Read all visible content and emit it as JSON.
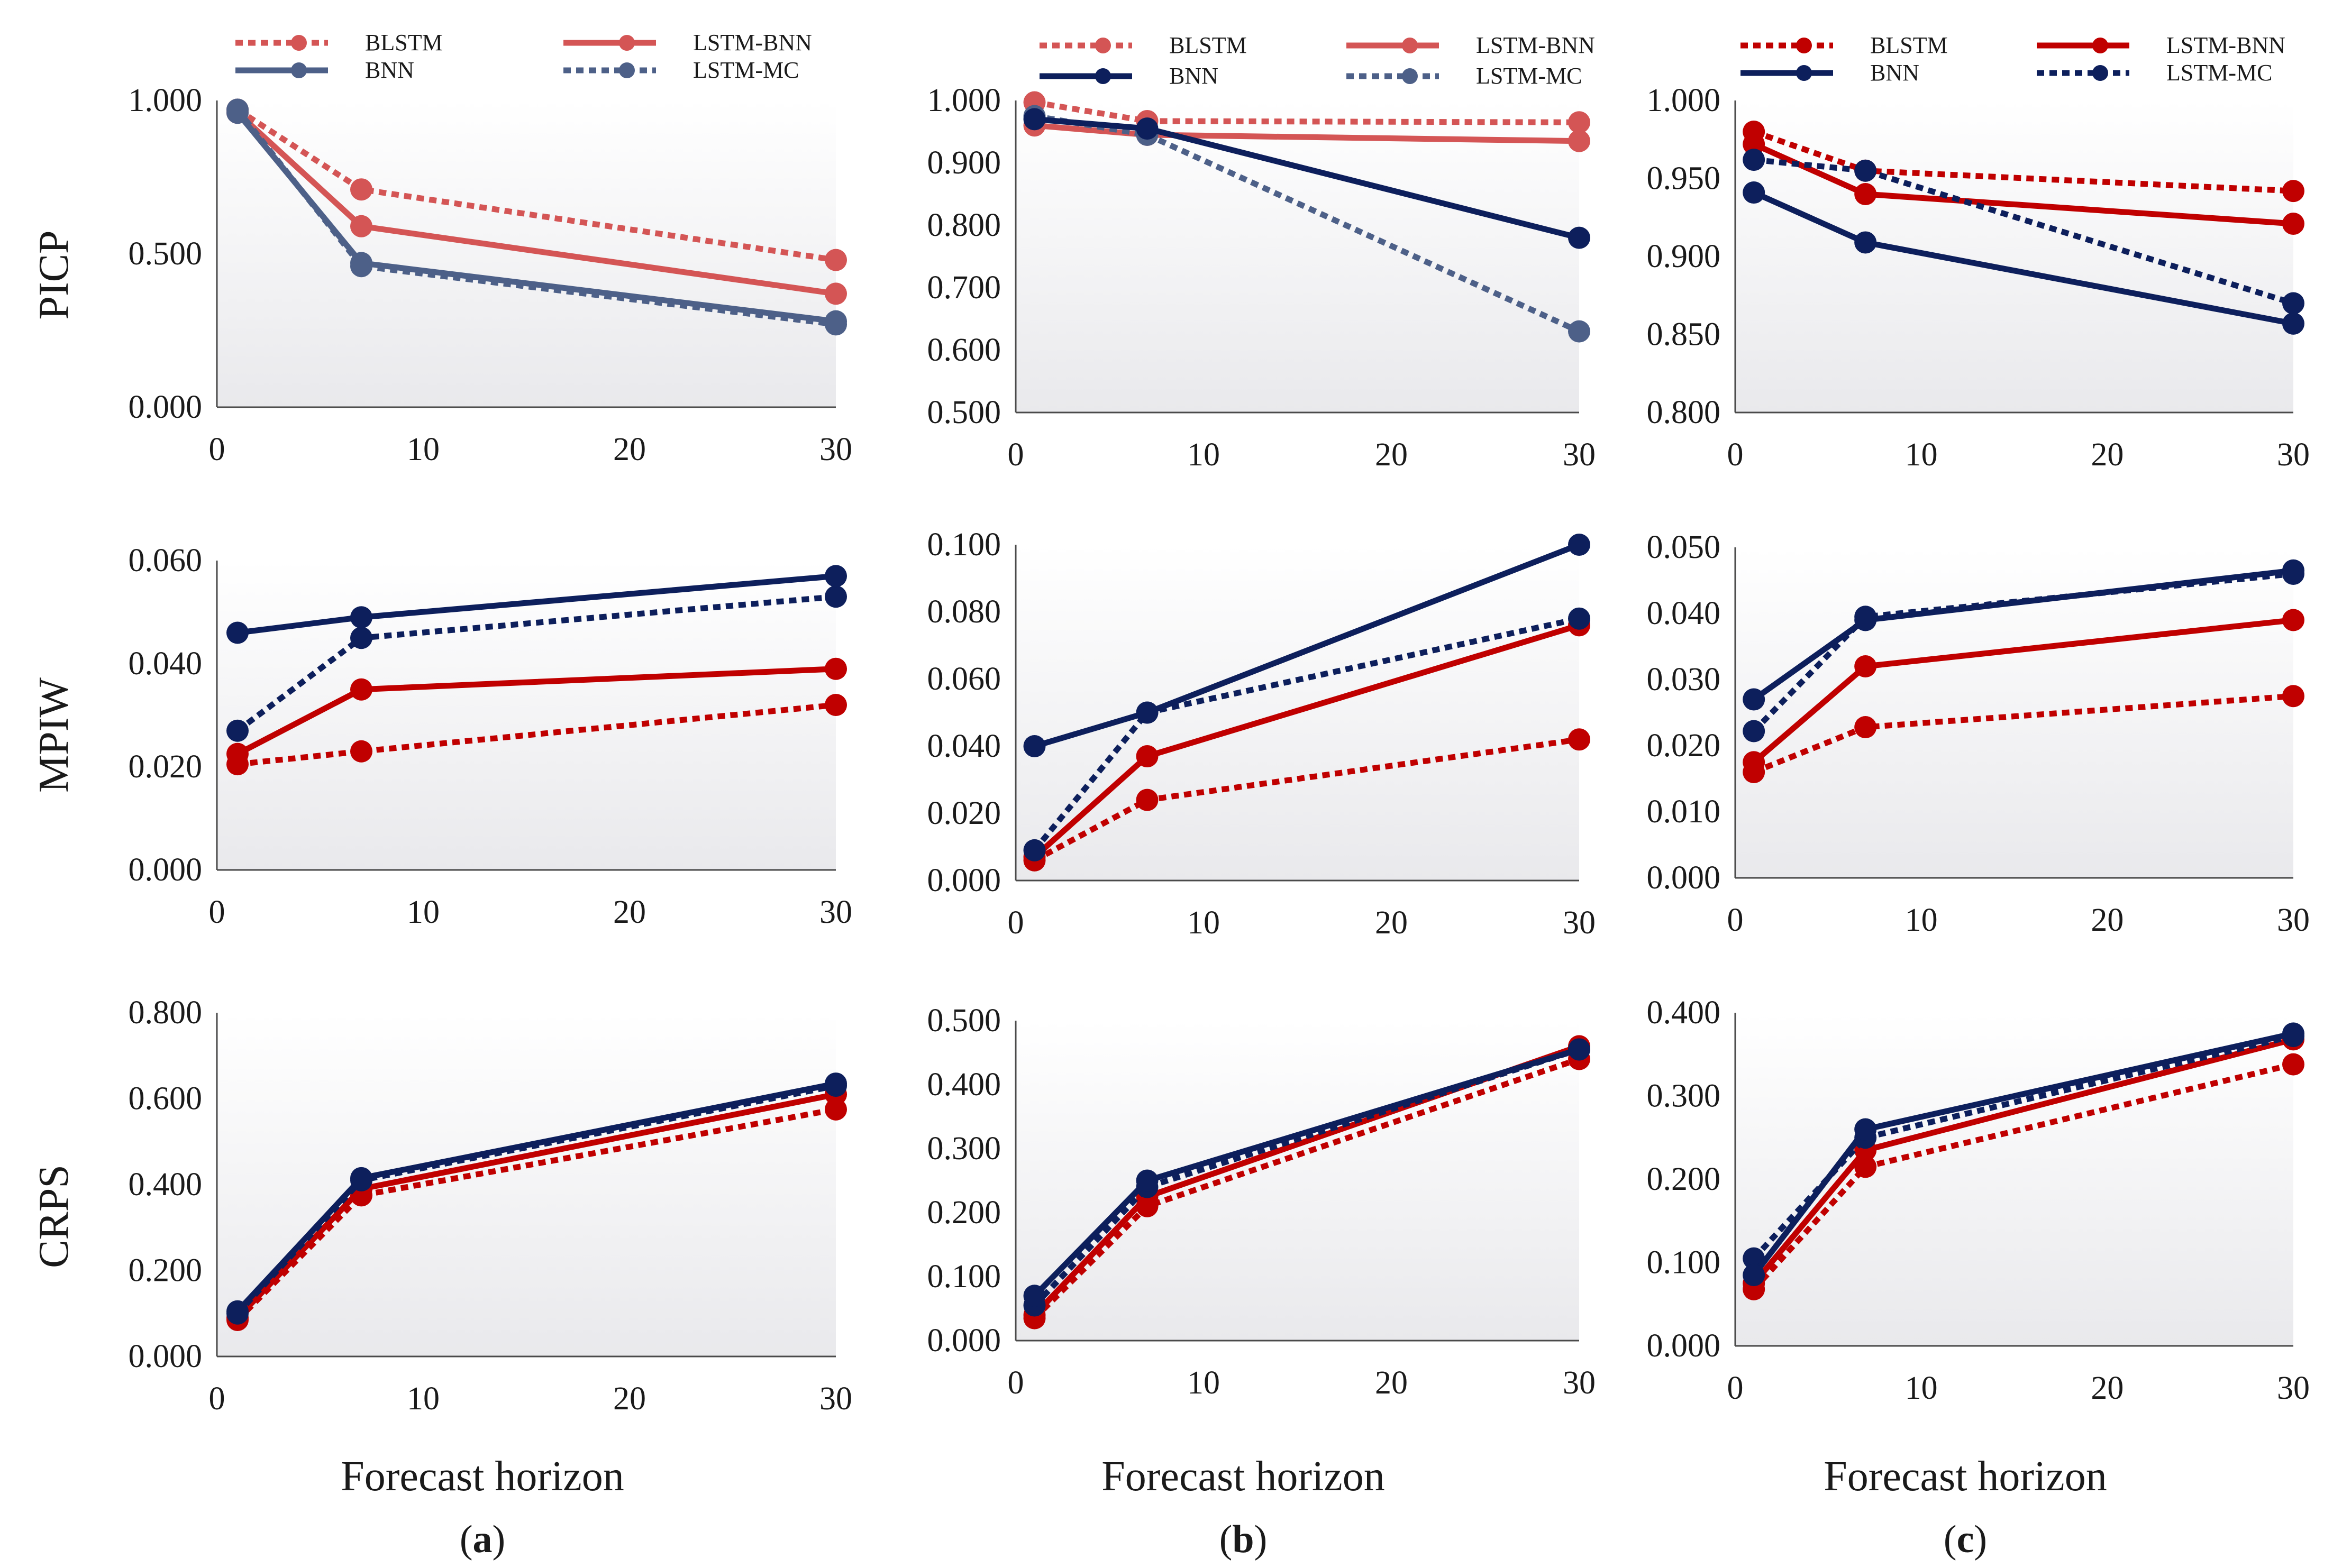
{
  "figure": {
    "xlabel": "Forecast horizon",
    "panel_labels": [
      {
        "open": "(",
        "letter": "a",
        "close": ")"
      },
      {
        "open": "(",
        "letter": "b",
        "close": ")"
      },
      {
        "open": "(",
        "letter": "c",
        "close": ")"
      }
    ],
    "row_labels": [
      "PICP",
      "MPIW",
      "CRPS"
    ],
    "colors": {
      "red": "#c00000",
      "blue": "#0d1f5c",
      "red_faded": "#d45555",
      "blue_faded": "#4d6088"
    }
  },
  "chart_data": [
    {
      "id": "a-picp",
      "type": "line",
      "ylabel": "PICP",
      "ylim": [
        0,
        1
      ],
      "yticks": [
        "0.000",
        "0.500",
        "1.000"
      ],
      "yticks_values": [
        0,
        0.5,
        1
      ],
      "xlim": [
        0,
        30
      ],
      "xticks": [
        0,
        10,
        20,
        30
      ],
      "x": [
        1,
        7,
        30
      ],
      "faded": true,
      "legend": [
        "BLSTM",
        "LSTM-BNN",
        "BNN",
        "LSTM-MC"
      ],
      "series": [
        {
          "name": "BLSTM",
          "values": [
            0.97,
            0.71,
            0.48
          ]
        },
        {
          "name": "LSTM-BNN",
          "values": [
            0.96,
            0.59,
            0.37
          ]
        },
        {
          "name": "BNN",
          "values": [
            0.96,
            0.47,
            0.28
          ]
        },
        {
          "name": "LSTM-MC",
          "values": [
            0.97,
            0.46,
            0.27
          ]
        }
      ]
    },
    {
      "id": "b-picp",
      "type": "line",
      "ylabel": "",
      "ylim": [
        0.5,
        1
      ],
      "yticks": [
        "0.500",
        "0.600",
        "0.700",
        "0.800",
        "0.900",
        "1.000"
      ],
      "yticks_values": [
        0.5,
        0.6,
        0.7,
        0.8,
        0.9,
        1.0
      ],
      "xlim": [
        0,
        30
      ],
      "xticks": [
        0,
        10,
        20,
        30
      ],
      "x": [
        1,
        7,
        30
      ],
      "faded": "mixed",
      "legend": [
        "BLSTM",
        "LSTM-BNN",
        "BNN",
        "LSTM-MC"
      ],
      "series": [
        {
          "name": "BLSTM",
          "values": [
            0.997,
            0.967,
            0.965
          ]
        },
        {
          "name": "LSTM-BNN",
          "values": [
            0.96,
            0.945,
            0.935
          ]
        },
        {
          "name": "BNN",
          "values": [
            0.97,
            0.955,
            0.78
          ]
        },
        {
          "name": "LSTM-MC",
          "values": [
            0.975,
            0.945,
            0.63
          ]
        }
      ]
    },
    {
      "id": "c-picp",
      "type": "line",
      "ylabel": "",
      "ylim": [
        0.8,
        1
      ],
      "yticks": [
        "0.800",
        "0.850",
        "0.900",
        "0.950",
        "1.000"
      ],
      "yticks_values": [
        0.8,
        0.85,
        0.9,
        0.95,
        1.0
      ],
      "xlim": [
        0,
        30
      ],
      "xticks": [
        0,
        10,
        20,
        30
      ],
      "x": [
        1,
        7,
        30
      ],
      "faded": false,
      "legend": [
        "BLSTM",
        "LSTM-BNN",
        "BNN",
        "LSTM-MC"
      ],
      "series": [
        {
          "name": "BLSTM",
          "values": [
            0.98,
            0.955,
            0.942
          ]
        },
        {
          "name": "LSTM-BNN",
          "values": [
            0.972,
            0.94,
            0.921
          ]
        },
        {
          "name": "BNN",
          "values": [
            0.941,
            0.909,
            0.857
          ]
        },
        {
          "name": "LSTM-MC",
          "values": [
            0.962,
            0.955,
            0.87
          ]
        }
      ]
    },
    {
      "id": "a-mpiw",
      "type": "line",
      "ylabel": "MPIW",
      "ylim": [
        0,
        0.06
      ],
      "yticks": [
        "0.000",
        "0.020",
        "0.040",
        "0.060"
      ],
      "yticks_values": [
        0,
        0.02,
        0.04,
        0.06
      ],
      "xlim": [
        0,
        30
      ],
      "xticks": [
        0,
        10,
        20,
        30
      ],
      "x": [
        1,
        7,
        30
      ],
      "faded": false,
      "series": [
        {
          "name": "BLSTM",
          "values": [
            0.0205,
            0.023,
            0.032
          ]
        },
        {
          "name": "LSTM-BNN",
          "values": [
            0.0225,
            0.035,
            0.039
          ]
        },
        {
          "name": "BNN",
          "values": [
            0.046,
            0.049,
            0.057
          ]
        },
        {
          "name": "LSTM-MC",
          "values": [
            0.027,
            0.045,
            0.053
          ]
        }
      ]
    },
    {
      "id": "b-mpiw",
      "type": "line",
      "ylabel": "",
      "ylim": [
        0,
        0.1
      ],
      "yticks": [
        "0.000",
        "0.020",
        "0.040",
        "0.060",
        "0.080",
        "0.100"
      ],
      "yticks_values": [
        0,
        0.02,
        0.04,
        0.06,
        0.08,
        0.1
      ],
      "xlim": [
        0,
        30
      ],
      "xticks": [
        0,
        10,
        20,
        30
      ],
      "x": [
        1,
        7,
        30
      ],
      "faded": false,
      "series": [
        {
          "name": "BLSTM",
          "values": [
            0.006,
            0.024,
            0.042
          ]
        },
        {
          "name": "LSTM-BNN",
          "values": [
            0.007,
            0.037,
            0.076
          ]
        },
        {
          "name": "BNN",
          "values": [
            0.04,
            0.05,
            0.1
          ]
        },
        {
          "name": "LSTM-MC",
          "values": [
            0.009,
            0.05,
            0.078
          ]
        }
      ]
    },
    {
      "id": "c-mpiw",
      "type": "line",
      "ylabel": "",
      "ylim": [
        0,
        0.05
      ],
      "yticks": [
        "0.000",
        "0.010",
        "0.020",
        "0.030",
        "0.040",
        "0.050"
      ],
      "yticks_values": [
        0,
        0.01,
        0.02,
        0.03,
        0.04,
        0.05
      ],
      "xlim": [
        0,
        30
      ],
      "xticks": [
        0,
        10,
        20,
        30
      ],
      "x": [
        1,
        7,
        30
      ],
      "faded": false,
      "series": [
        {
          "name": "BLSTM",
          "values": [
            0.016,
            0.0228,
            0.0275
          ]
        },
        {
          "name": "LSTM-BNN",
          "values": [
            0.0175,
            0.032,
            0.039
          ]
        },
        {
          "name": "BNN",
          "values": [
            0.027,
            0.039,
            0.0465
          ]
        },
        {
          "name": "LSTM-MC",
          "values": [
            0.0222,
            0.0395,
            0.046
          ]
        }
      ]
    },
    {
      "id": "a-crps",
      "type": "line",
      "ylabel": "CRPS",
      "ylim": [
        0,
        0.8
      ],
      "yticks": [
        "0.000",
        "0.200",
        "0.400",
        "0.600",
        "0.800"
      ],
      "yticks_values": [
        0,
        0.2,
        0.4,
        0.6,
        0.8
      ],
      "xlim": [
        0,
        30
      ],
      "xticks": [
        0,
        10,
        20,
        30
      ],
      "x": [
        1,
        7,
        30
      ],
      "faded": false,
      "series": [
        {
          "name": "BLSTM",
          "values": [
            0.085,
            0.375,
            0.575
          ]
        },
        {
          "name": "LSTM-BNN",
          "values": [
            0.09,
            0.39,
            0.61
          ]
        },
        {
          "name": "BNN",
          "values": [
            0.105,
            0.415,
            0.635
          ]
        },
        {
          "name": "LSTM-MC",
          "values": [
            0.1,
            0.41,
            0.63
          ]
        }
      ]
    },
    {
      "id": "b-crps",
      "type": "line",
      "ylabel": "",
      "ylim": [
        0,
        0.5
      ],
      "yticks": [
        "0.000",
        "0.100",
        "0.200",
        "0.300",
        "0.400",
        "0.500"
      ],
      "yticks_values": [
        0,
        0.1,
        0.2,
        0.3,
        0.4,
        0.5
      ],
      "xlim": [
        0,
        30
      ],
      "xticks": [
        0,
        10,
        20,
        30
      ],
      "x": [
        1,
        7,
        30
      ],
      "faded": false,
      "series": [
        {
          "name": "BLSTM",
          "values": [
            0.035,
            0.21,
            0.44
          ]
        },
        {
          "name": "LSTM-BNN",
          "values": [
            0.04,
            0.225,
            0.46
          ]
        },
        {
          "name": "BNN",
          "values": [
            0.07,
            0.25,
            0.455
          ]
        },
        {
          "name": "LSTM-MC",
          "values": [
            0.055,
            0.24,
            0.455
          ]
        }
      ]
    },
    {
      "id": "c-crps",
      "type": "line",
      "ylabel": "",
      "ylim": [
        0,
        0.4
      ],
      "yticks": [
        "0.000",
        "0.100",
        "0.200",
        "0.300",
        "0.400"
      ],
      "yticks_values": [
        0,
        0.1,
        0.2,
        0.3,
        0.4
      ],
      "xlim": [
        0,
        30
      ],
      "xticks": [
        0,
        10,
        20,
        30
      ],
      "x": [
        1,
        7,
        30
      ],
      "faded": false,
      "series": [
        {
          "name": "BLSTM",
          "values": [
            0.068,
            0.215,
            0.338
          ]
        },
        {
          "name": "LSTM-BNN",
          "values": [
            0.075,
            0.235,
            0.368
          ]
        },
        {
          "name": "BNN",
          "values": [
            0.085,
            0.26,
            0.375
          ]
        },
        {
          "name": "LSTM-MC",
          "values": [
            0.105,
            0.25,
            0.372
          ]
        }
      ]
    }
  ]
}
